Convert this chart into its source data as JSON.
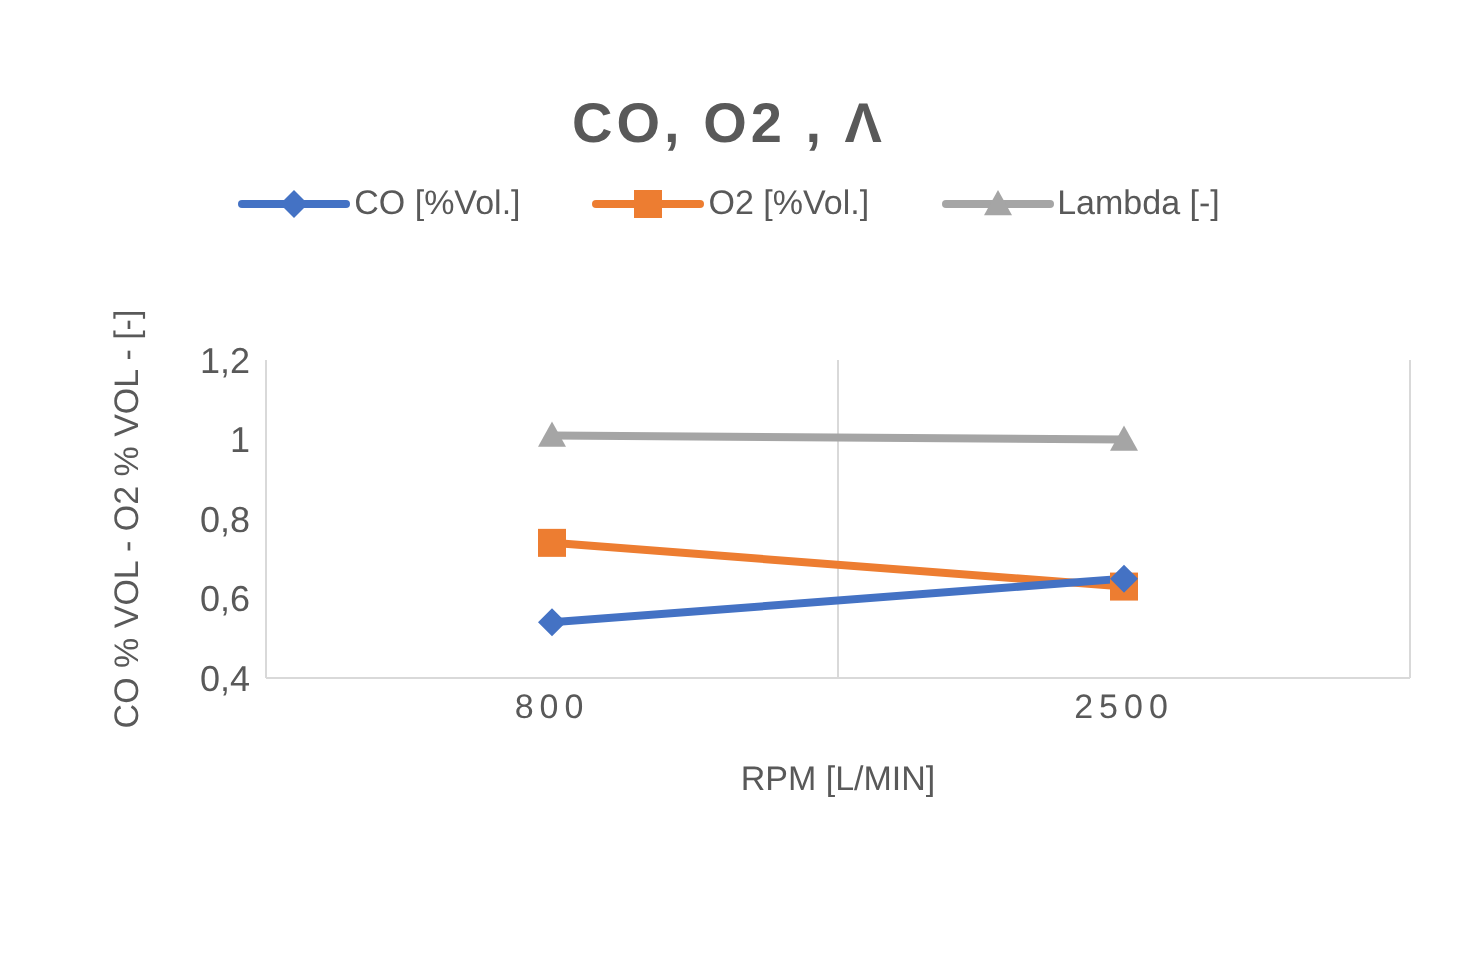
{
  "chart_data": {
    "type": "line",
    "title": "CO, O2 , Λ",
    "xlabel": "RPM [L/MIN]",
    "ylabel": "CO % VOL - O2 % VOL - [-]",
    "categories": [
      "800",
      "2500"
    ],
    "series": [
      {
        "name": "CO [%Vol.]",
        "color": "#4472c4",
        "marker": "diamond",
        "values": [
          0.54,
          0.65
        ]
      },
      {
        "name": "O2 [%Vol.]",
        "color": "#ed7d31",
        "marker": "square",
        "values": [
          0.74,
          0.63
        ]
      },
      {
        "name": "Lambda [-]",
        "color": "#a5a5a5",
        "marker": "triangle",
        "values": [
          1.01,
          1.0
        ]
      }
    ],
    "ylim": [
      0.4,
      1.2
    ],
    "yticks": [
      {
        "value": 0.4,
        "label": "0,4"
      },
      {
        "value": 0.6,
        "label": "0,6"
      },
      {
        "value": 0.8,
        "label": "0,8"
      },
      {
        "value": 1,
        "label": "1"
      },
      {
        "value": 1.2,
        "label": "1,2"
      }
    ],
    "grid": "x",
    "legend": "top"
  }
}
